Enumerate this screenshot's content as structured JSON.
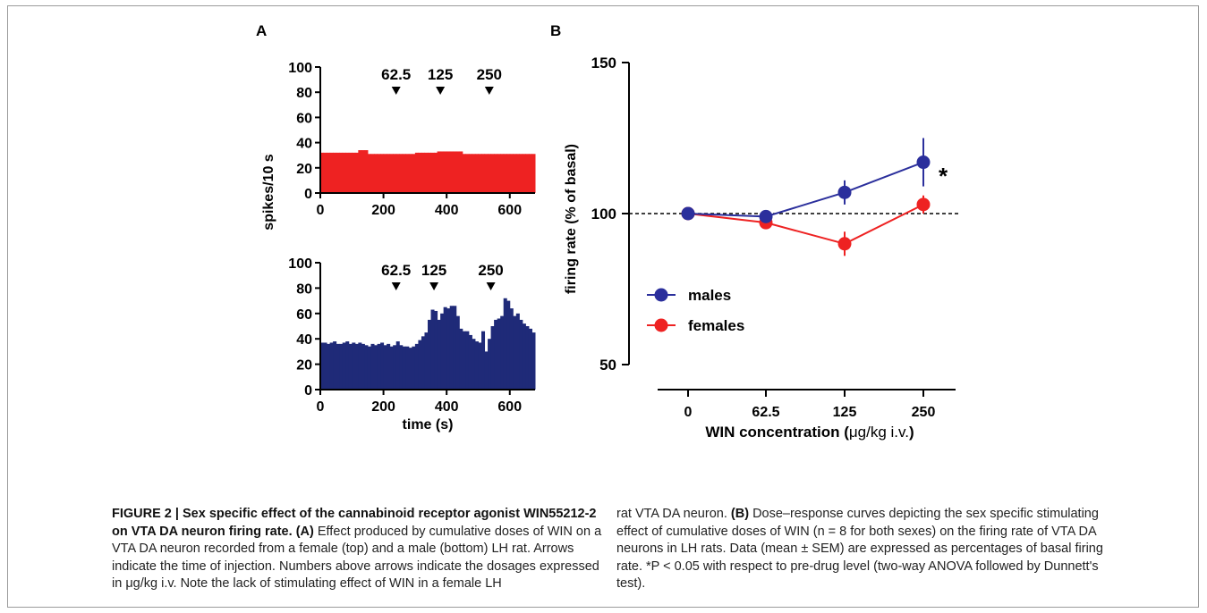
{
  "figure": {
    "caption_left_bold": "FIGURE 2 | Sex specific effect of the cannabinoid receptor agonist WIN55212-2 on VTA DA neuron firing rate.",
    "caption_left_label_a": "(A)",
    "caption_left_text": "Effect produced by cumulative doses of WIN on a VTA DA neuron recorded from a female (top) and a male (bottom) LH rat. Arrows indicate the time of injection. Numbers above arrows indicate the dosages expressed in μg/kg i.v. Note the lack of stimulating effect of WIN in a female LH",
    "caption_right_text_1": "rat VTA DA neuron.",
    "caption_right_label_b": "(B)",
    "caption_right_text_2": "Dose–response curves depicting the sex specific stimulating effect of cumulative doses of WIN (n = 8 for both sexes) on the firing rate of VTA DA neurons in LH rats. Data (mean ± SEM) are expressed as percentages of basal firing rate. *P < 0.05 with respect to pre-drug level (two-way ANOVA followed by Dunnett's test)."
  },
  "chart_data": [
    {
      "type": "bar",
      "panel": "A",
      "subplot": "top (female)",
      "color": "#ee2222",
      "xlim": [
        0,
        680
      ],
      "ylim": [
        0,
        100
      ],
      "xticks": [
        0,
        200,
        400,
        600
      ],
      "yticks": [
        0,
        20,
        40,
        60,
        80,
        100
      ],
      "ylabel": "spikes/10 s",
      "bin_width": 10,
      "values": [
        32,
        32,
        32,
        32,
        32,
        32,
        32,
        32,
        32,
        32,
        32,
        32,
        34,
        34,
        34,
        31,
        31,
        31,
        31,
        31,
        31,
        31,
        31,
        31,
        31,
        31,
        31,
        31,
        31,
        31,
        32,
        32,
        32,
        32,
        32,
        32,
        32,
        33,
        33,
        33,
        33,
        33,
        33,
        33,
        33,
        31,
        31,
        31,
        31,
        31,
        31,
        31,
        31,
        31,
        31,
        31,
        31,
        31,
        31,
        31,
        31,
        31,
        31,
        31,
        31,
        31,
        31,
        31
      ],
      "annotations": [
        {
          "label": "62.5",
          "x": 240
        },
        {
          "label": "125",
          "x": 380
        },
        {
          "label": "250",
          "x": 535
        }
      ]
    },
    {
      "type": "bar",
      "panel": "A",
      "subplot": "bottom (male)",
      "color": "#1f2a78",
      "xlim": [
        0,
        680
      ],
      "ylim": [
        0,
        100
      ],
      "xticks": [
        0,
        200,
        400,
        600
      ],
      "yticks": [
        0,
        20,
        40,
        60,
        80,
        100
      ],
      "xlabel": "time (s)",
      "bin_width": 10,
      "values": [
        37,
        37,
        36,
        37,
        38,
        36,
        36,
        37,
        38,
        36,
        37,
        36,
        37,
        36,
        35,
        34,
        36,
        35,
        36,
        37,
        35,
        36,
        34,
        35,
        38,
        35,
        34,
        34,
        33,
        34,
        36,
        39,
        42,
        45,
        55,
        63,
        62,
        55,
        60,
        65,
        64,
        66,
        66,
        58,
        48,
        46,
        46,
        43,
        40,
        38,
        37,
        46,
        30,
        40,
        50,
        55,
        56,
        58,
        72,
        70,
        64,
        58,
        60,
        55,
        52,
        50,
        48,
        45
      ],
      "annotations": [
        {
          "label": "62.5",
          "x": 240
        },
        {
          "label": "125",
          "x": 360
        },
        {
          "label": "250",
          "x": 540
        }
      ]
    },
    {
      "type": "line",
      "panel": "B",
      "categories": [
        "0",
        "62.5",
        "125",
        "250"
      ],
      "ylim": [
        50,
        150
      ],
      "yticks": [
        50,
        100,
        150
      ],
      "ylabel": "firing rate (% of basal)",
      "xlabel_main": "WIN concentration (",
      "xlabel_unit": "μg/kg i.v.",
      "xlabel_close": ")",
      "reference_line": 100,
      "significance_marker": "*",
      "series": [
        {
          "name": "males",
          "color": "#2b2f9c",
          "values": [
            100,
            99,
            107,
            117
          ],
          "errors": [
            1,
            1,
            4,
            8
          ]
        },
        {
          "name": "females",
          "color": "#ee2222",
          "values": [
            100,
            97,
            90,
            103
          ],
          "errors": [
            1,
            1,
            4,
            3
          ]
        }
      ]
    }
  ],
  "panel_labels": {
    "a": "A",
    "b": "B"
  }
}
